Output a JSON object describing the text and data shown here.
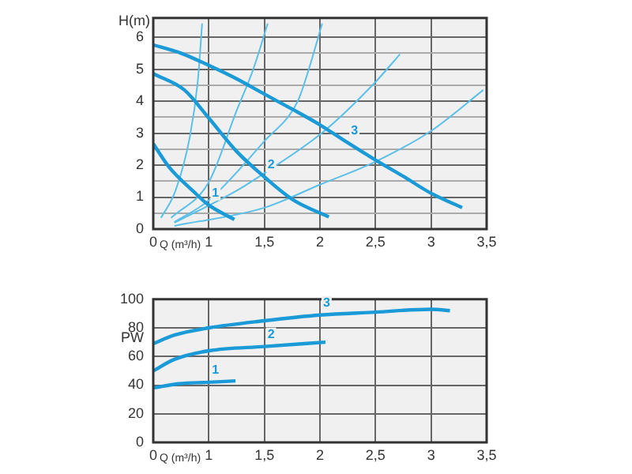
{
  "chart_data": [
    {
      "type": "line",
      "ylabel": "H(m)",
      "xlabel": "Q (m³/h)",
      "xlim": [
        0.5,
        3.5
      ],
      "xticks": [
        {
          "value": 0.5,
          "label": "0"
        },
        1,
        {
          "value": 1.5,
          "label": "1,5"
        },
        2,
        {
          "value": 2.5,
          "label": "2,5"
        },
        3,
        {
          "value": 3.5,
          "label": "3,5"
        }
      ],
      "ylim": [
        0,
        6.6
      ],
      "yticks": [
        0,
        {
          "value": 0.5,
          "label": null
        },
        1,
        {
          "value": 1.5,
          "label": null
        },
        2,
        {
          "value": 2.5,
          "label": null
        },
        3,
        {
          "value": 3.5,
          "label": null
        },
        4,
        {
          "value": 4.5,
          "label": null
        },
        5,
        {
          "value": 5.5,
          "label": null
        },
        6
      ],
      "grid": true,
      "legend": false,
      "marker": "none",
      "series": [
        {
          "name": "3",
          "color": "#1a9ad6",
          "x": [
            0.5,
            0.75,
            1,
            1.25,
            1.5,
            1.75,
            2,
            2.25,
            2.5,
            2.75,
            3,
            3.28
          ],
          "values": [
            5.76,
            5.5,
            5.12,
            4.7,
            4.22,
            3.75,
            3.26,
            2.7,
            2.16,
            1.65,
            1.12,
            0.67
          ]
        },
        {
          "name": "2",
          "color": "#1a9ad6",
          "x": [
            0.5,
            0.78,
            1,
            1.25,
            1.5,
            1.76,
            2.08
          ],
          "values": [
            4.86,
            4.35,
            3.47,
            2.43,
            1.63,
            0.91,
            0.38
          ]
        },
        {
          "name": "1",
          "color": "#1a9ad6",
          "x": [
            0.5,
            0.64,
            0.87,
            1,
            1.23
          ],
          "values": [
            2.67,
            1.95,
            1.15,
            0.75,
            0.3
          ]
        },
        {
          "color": "#5bc0e8",
          "x": [
            0.57,
            0.7,
            0.83,
            0.9,
            0.94
          ],
          "values": [
            0.35,
            1.2,
            2.9,
            4.6,
            6.43
          ]
        },
        {
          "color": "#5bc0e8",
          "x": [
            0.66,
            1,
            1.25,
            1.4,
            1.53
          ],
          "values": [
            0.35,
            1.47,
            3.7,
            5.0,
            6.43
          ]
        },
        {
          "color": "#5bc0e8",
          "x": [
            0.69,
            1,
            1.5,
            1.8,
            1.9,
            2.02
          ],
          "values": [
            0.22,
            0.9,
            2.75,
            4.0,
            5.0,
            6.43
          ]
        },
        {
          "color": "#5bc0e8",
          "x": [
            0.69,
            1.25,
            1.5,
            2.04,
            2.5,
            2.72
          ],
          "values": [
            0.2,
            1.2,
            1.75,
            3.07,
            4.6,
            5.47
          ]
        },
        {
          "color": "#5bc0e8",
          "x": [
            0.69,
            1.5,
            2,
            2.5,
            3,
            3.47
          ],
          "values": [
            0.1,
            0.67,
            1.39,
            2.11,
            3.07,
            4.35
          ]
        }
      ]
    },
    {
      "type": "line",
      "ylabel": "PW",
      "xlabel": "Q (m³/h)",
      "xlim": [
        0.5,
        3.5
      ],
      "xticks": [
        {
          "value": 0.5,
          "label": "0"
        },
        1,
        {
          "value": 1.5,
          "label": "1,5"
        },
        2,
        {
          "value": 2.5,
          "label": "2,5"
        },
        3,
        {
          "value": 3.5,
          "label": "3,5"
        }
      ],
      "ylim": [
        0,
        100
      ],
      "yticks": [
        0,
        20,
        40,
        60,
        80,
        100
      ],
      "grid": true,
      "legend": false,
      "marker": "none",
      "series": [
        {
          "name": "3",
          "color": "#1a9ad6",
          "x": [
            0.5,
            0.69,
            1,
            1.5,
            2,
            2.5,
            3,
            3.17
          ],
          "values": [
            69,
            75,
            80,
            85,
            89,
            91,
            93,
            92
          ]
        },
        {
          "name": "2",
          "color": "#1a9ad6",
          "x": [
            0.5,
            0.69,
            1,
            1.5,
            2.05
          ],
          "values": [
            50,
            58,
            64,
            67,
            70
          ]
        },
        {
          "name": "1",
          "color": "#1a9ad6",
          "x": [
            0.5,
            0.73,
            1,
            1.24
          ],
          "values": [
            38,
            41,
            42,
            43
          ]
        }
      ]
    }
  ]
}
